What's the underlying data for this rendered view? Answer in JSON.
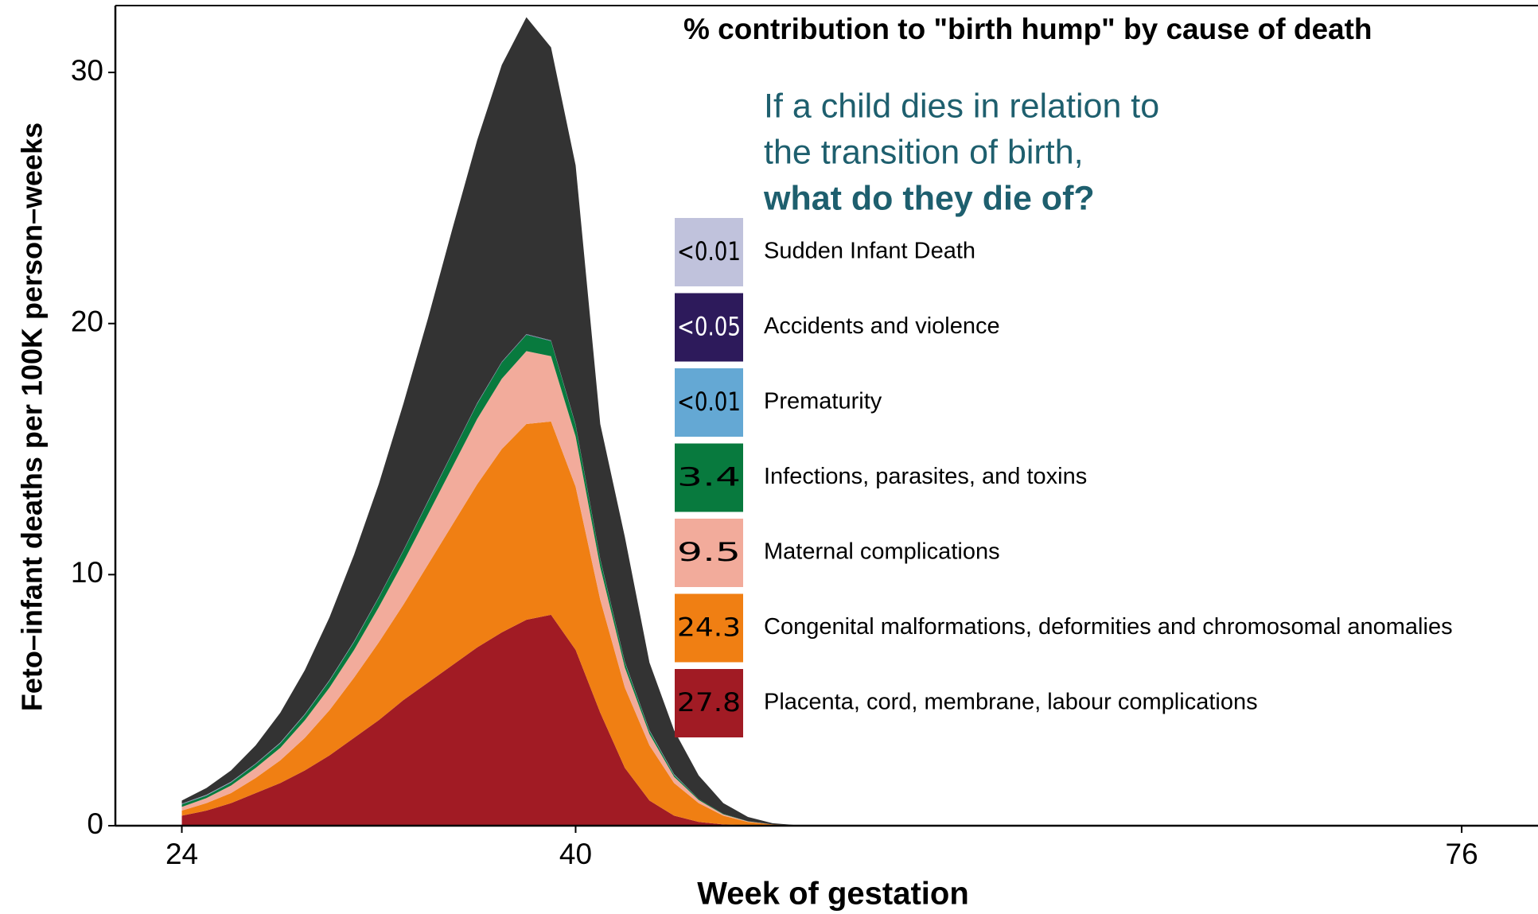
{
  "chart_data": {
    "type": "stacked_area",
    "legend_title": "% contribution to \"birth hump\" by cause of death",
    "question": [
      "If a child dies in relation to",
      "the transition of birth,",
      "what do they die of?"
    ],
    "xlabel": "Week of gestation",
    "ylabel": "Feto–infant deaths per 100K person–weeks",
    "x": [
      24,
      25,
      26,
      27,
      28,
      29,
      30,
      31,
      32,
      33,
      34,
      35,
      36,
      37,
      38,
      39,
      40,
      41,
      42,
      43,
      44,
      45,
      46,
      47,
      48,
      49,
      50,
      76
    ],
    "xlim": [
      21.3,
      79.1
    ],
    "xticks": [
      24,
      40,
      76
    ],
    "ylim": [
      0,
      32.6
    ],
    "yticks": [
      0,
      10,
      20,
      30
    ],
    "series": [
      {
        "name": "Placenta, cord, membrane, labour complications",
        "share": 27.8,
        "color": "#a11b24",
        "values": [
          0.4,
          0.6,
          0.9,
          1.3,
          1.7,
          2.2,
          2.8,
          3.5,
          4.2,
          5.0,
          5.7,
          6.4,
          7.1,
          7.7,
          8.2,
          8.4,
          7.0,
          4.5,
          2.3,
          1.0,
          0.4,
          0.15,
          0.05,
          0.01,
          0,
          0,
          0,
          0
        ]
      },
      {
        "name": "Congenital malformations, deformities and chromosomal anomalies",
        "share": 24.3,
        "color": "#f07f13",
        "values": [
          0.2,
          0.3,
          0.4,
          0.6,
          0.9,
          1.3,
          1.8,
          2.4,
          3.1,
          3.8,
          4.7,
          5.6,
          6.5,
          7.3,
          7.8,
          7.7,
          6.5,
          4.5,
          3.2,
          2.2,
          1.3,
          0.75,
          0.35,
          0.14,
          0.05,
          0.01,
          0,
          0
        ]
      },
      {
        "name": "Maternal complications",
        "share": 9.5,
        "color": "#f2ab9b",
        "values": [
          0.15,
          0.2,
          0.3,
          0.4,
          0.5,
          0.7,
          0.9,
          1.1,
          1.4,
          1.7,
          2.0,
          2.3,
          2.6,
          2.8,
          2.9,
          2.6,
          2.0,
          1.3,
          0.8,
          0.45,
          0.25,
          0.12,
          0.05,
          0.02,
          0,
          0,
          0,
          0
        ]
      },
      {
        "name": "Infections, parasites, and toxins",
        "share": 3.4,
        "color": "#087a3e",
        "values": [
          0.1,
          0.1,
          0.12,
          0.15,
          0.18,
          0.22,
          0.27,
          0.32,
          0.38,
          0.44,
          0.5,
          0.55,
          0.6,
          0.65,
          0.65,
          0.6,
          0.45,
          0.3,
          0.2,
          0.12,
          0.07,
          0.04,
          0.02,
          0.01,
          0,
          0,
          0,
          0
        ]
      },
      {
        "name": "Prematurity",
        "share": "<0.01",
        "color": "#64a8d4",
        "values": [
          0.01,
          0.01,
          0.01,
          0.01,
          0.01,
          0.01,
          0.01,
          0.01,
          0.01,
          0.01,
          0.01,
          0.01,
          0.01,
          0.01,
          0.01,
          0.01,
          0.01,
          0.01,
          0.01,
          0.01,
          0.01,
          0,
          0,
          0,
          0,
          0,
          0,
          0
        ]
      },
      {
        "name": "Accidents and violence",
        "share": "<0.05",
        "color": "#2d1a5b",
        "text_color": "#ffffff",
        "values": [
          0.01,
          0.01,
          0.01,
          0.01,
          0.01,
          0.01,
          0.01,
          0.01,
          0.01,
          0.01,
          0.01,
          0.01,
          0.01,
          0.01,
          0.01,
          0.01,
          0.01,
          0.01,
          0.01,
          0.01,
          0.01,
          0,
          0,
          0,
          0,
          0,
          0,
          0
        ]
      },
      {
        "name": "Sudden Infant Death",
        "share": "<0.01",
        "color": "#c0c2dc",
        "values": [
          0.01,
          0.01,
          0.01,
          0.01,
          0.01,
          0.01,
          0.01,
          0.01,
          0.01,
          0.01,
          0.01,
          0.01,
          0.01,
          0.01,
          0.01,
          0.01,
          0.01,
          0.01,
          0.01,
          0.01,
          0.01,
          0,
          0,
          0,
          0,
          0,
          0,
          0
        ]
      },
      {
        "color": "#333333",
        "values": [
          0.12,
          0.27,
          0.45,
          0.72,
          1.19,
          1.75,
          2.5,
          3.45,
          4.49,
          5.83,
          7.27,
          8.92,
          10.47,
          11.82,
          12.62,
          11.67,
          10.32,
          5.37,
          4.97,
          2.7,
          1.75,
          0.94,
          0.43,
          0.17,
          0.05,
          0.01,
          0,
          0
        ]
      }
    ]
  }
}
